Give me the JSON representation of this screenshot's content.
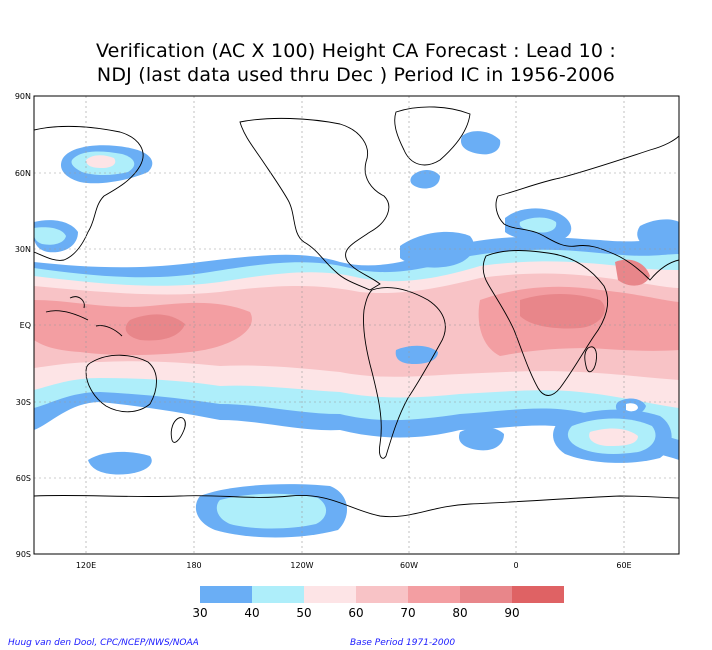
{
  "title": {
    "line1": "Verification (AC X 100) Height CA Forecast : Lead 10 :",
    "line2": "NDJ (last data used thru Dec ) Period IC in 1956-2006"
  },
  "map": {
    "lat_labels": [
      "90N",
      "60N",
      "30N",
      "EQ",
      "30S",
      "60S",
      "90S"
    ],
    "lon_labels": [
      "120E",
      "180",
      "120W",
      "60W",
      "0",
      "60E"
    ],
    "colors": {
      "c30_40": "#6aaef5",
      "c40_50": "#aeeefa",
      "c50_60": "#fde4e6",
      "c60_70": "#f8c3c6",
      "c70_80": "#f39ea2",
      "c80_90": "#e8868a",
      "c90": "#df6264"
    }
  },
  "colorbar": {
    "labels": [
      "30",
      "40",
      "50",
      "60",
      "70",
      "80",
      "90"
    ]
  },
  "footer": {
    "credit": "Huug van den Dool, CPC/NCEP/NWS/NOAA",
    "base_period": "Base Period 1971-2000"
  }
}
